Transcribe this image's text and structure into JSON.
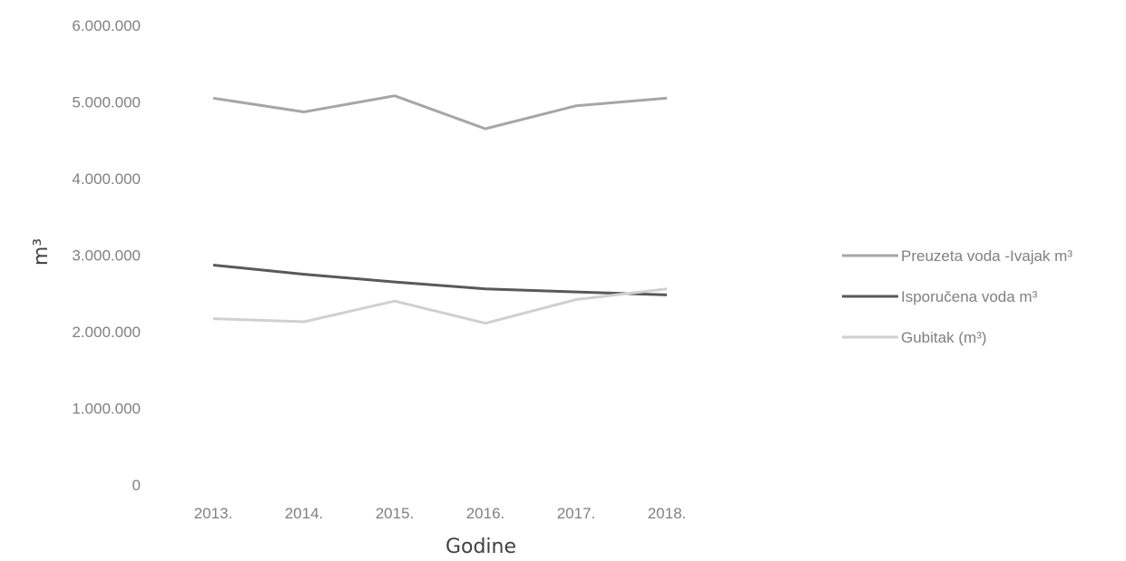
{
  "chart_data": {
    "type": "line",
    "title": "",
    "xlabel": "Godine",
    "ylabel": "m³",
    "categories": [
      "2013.",
      "2014.",
      "2015.",
      "2016.",
      "2017.",
      "2018."
    ],
    "ylim": [
      0,
      6000000
    ],
    "yticks": [
      0,
      1000000,
      2000000,
      3000000,
      4000000,
      5000000,
      6000000
    ],
    "ytick_labels": [
      "0",
      "1.000.000",
      "2.000.000",
      "3.000.000",
      "4.000.000",
      "5.000.000",
      "6.000.000"
    ],
    "grid": false,
    "legend_position": "right",
    "series": [
      {
        "name": "Preuzeta voda -Ivajak m³",
        "color": "#a6a6a6",
        "values": [
          5050000,
          4870000,
          5080000,
          4650000,
          4950000,
          5050000
        ]
      },
      {
        "name": "Isporučena voda m³",
        "color": "#595959",
        "values": [
          2870000,
          2750000,
          2650000,
          2560000,
          2520000,
          2480000
        ]
      },
      {
        "name": "Gubitak (m³)",
        "color": "#d0d0d0",
        "values": [
          2170000,
          2130000,
          2400000,
          2110000,
          2420000,
          2560000
        ]
      }
    ]
  }
}
